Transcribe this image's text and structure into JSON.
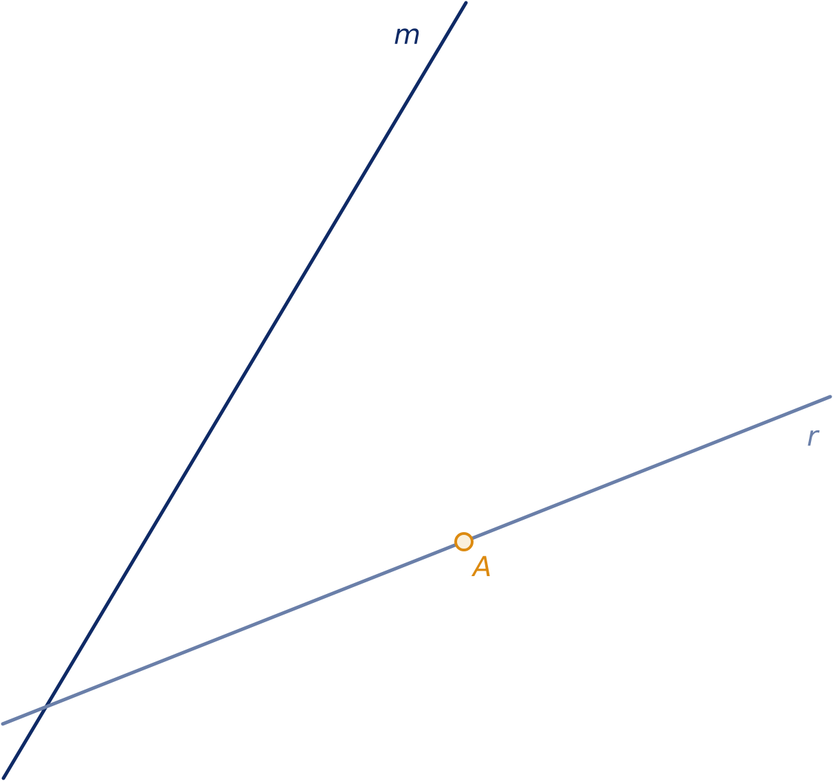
{
  "figure": {
    "lines": [
      {
        "id": "m",
        "label": "m",
        "color": "#0f2a66"
      },
      {
        "id": "r",
        "label": "r",
        "color": "#6a7fa9"
      }
    ],
    "points": [
      {
        "id": "A",
        "label": "A",
        "on_line": "r",
        "stroke": "#dc8a10",
        "fill": "#faf0dc"
      }
    ]
  }
}
